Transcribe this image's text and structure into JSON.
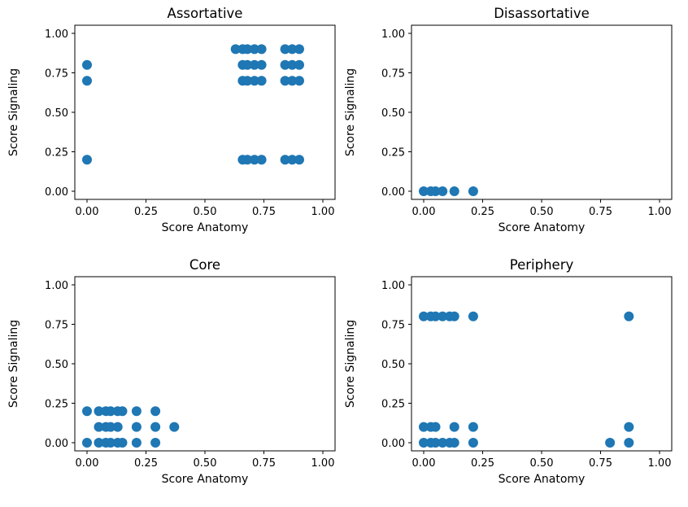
{
  "chart_data": [
    {
      "type": "scatter",
      "title": "Assortative",
      "xlabel": "Score Anatomy",
      "ylabel": "Score Signaling",
      "xlim": [
        0,
        1
      ],
      "ylim": [
        0,
        1
      ],
      "xticks": [
        "0.00",
        "0.25",
        "0.50",
        "0.75",
        "1.00"
      ],
      "yticks": [
        "0.00",
        "0.25",
        "0.50",
        "0.75",
        "1.00"
      ],
      "color": "#1f77b4",
      "points": [
        [
          0,
          0.8
        ],
        [
          0,
          0.7
        ],
        [
          0,
          0.2
        ],
        [
          0.63,
          0.9
        ],
        [
          0.66,
          0.9
        ],
        [
          0.68,
          0.9
        ],
        [
          0.71,
          0.9
        ],
        [
          0.74,
          0.9
        ],
        [
          0.84,
          0.9
        ],
        [
          0.87,
          0.9
        ],
        [
          0.9,
          0.9
        ],
        [
          0.66,
          0.8
        ],
        [
          0.68,
          0.8
        ],
        [
          0.71,
          0.8
        ],
        [
          0.74,
          0.8
        ],
        [
          0.84,
          0.8
        ],
        [
          0.87,
          0.8
        ],
        [
          0.9,
          0.8
        ],
        [
          0.66,
          0.7
        ],
        [
          0.68,
          0.7
        ],
        [
          0.71,
          0.7
        ],
        [
          0.74,
          0.7
        ],
        [
          0.84,
          0.7
        ],
        [
          0.87,
          0.7
        ],
        [
          0.9,
          0.7
        ],
        [
          0.66,
          0.2
        ],
        [
          0.68,
          0.2
        ],
        [
          0.71,
          0.2
        ],
        [
          0.74,
          0.2
        ],
        [
          0.84,
          0.2
        ],
        [
          0.87,
          0.2
        ],
        [
          0.9,
          0.2
        ]
      ]
    },
    {
      "type": "scatter",
      "title": "Disassortative",
      "xlabel": "Score Anatomy",
      "ylabel": "Score Signaling",
      "xlim": [
        0,
        1
      ],
      "ylim": [
        0,
        1
      ],
      "xticks": [
        "0.00",
        "0.25",
        "0.50",
        "0.75",
        "1.00"
      ],
      "yticks": [
        "0.00",
        "0.25",
        "0.50",
        "0.75",
        "1.00"
      ],
      "color": "#1f77b4",
      "points": [
        [
          0,
          0
        ],
        [
          0.03,
          0
        ],
        [
          0.05,
          0
        ],
        [
          0.08,
          0
        ],
        [
          0.13,
          0
        ],
        [
          0.21,
          0
        ]
      ]
    },
    {
      "type": "scatter",
      "title": "Core",
      "xlabel": "Score Anatomy",
      "ylabel": "Score Signaling",
      "xlim": [
        0,
        1
      ],
      "ylim": [
        0,
        1
      ],
      "xticks": [
        "0.00",
        "0.25",
        "0.50",
        "0.75",
        "1.00"
      ],
      "yticks": [
        "0.00",
        "0.25",
        "0.50",
        "0.75",
        "1.00"
      ],
      "color": "#1f77b4",
      "points": [
        [
          0,
          0.2
        ],
        [
          0.05,
          0.2
        ],
        [
          0.08,
          0.2
        ],
        [
          0.1,
          0.2
        ],
        [
          0.13,
          0.2
        ],
        [
          0.15,
          0.2
        ],
        [
          0.21,
          0.2
        ],
        [
          0.29,
          0.2
        ],
        [
          0.05,
          0.1
        ],
        [
          0.08,
          0.1
        ],
        [
          0.1,
          0.1
        ],
        [
          0.13,
          0.1
        ],
        [
          0.21,
          0.1
        ],
        [
          0.29,
          0.1
        ],
        [
          0.37,
          0.1
        ],
        [
          0,
          0
        ],
        [
          0.05,
          0
        ],
        [
          0.08,
          0
        ],
        [
          0.1,
          0
        ],
        [
          0.13,
          0
        ],
        [
          0.15,
          0
        ],
        [
          0.21,
          0
        ],
        [
          0.29,
          0
        ]
      ]
    },
    {
      "type": "scatter",
      "title": "Periphery",
      "xlabel": "Score Anatomy",
      "ylabel": "Score Signaling",
      "xlim": [
        0,
        1
      ],
      "ylim": [
        0,
        1
      ],
      "xticks": [
        "0.00",
        "0.25",
        "0.50",
        "0.75",
        "1.00"
      ],
      "yticks": [
        "0.00",
        "0.25",
        "0.50",
        "0.75",
        "1.00"
      ],
      "color": "#1f77b4",
      "points": [
        [
          0,
          0.8
        ],
        [
          0.03,
          0.8
        ],
        [
          0.05,
          0.8
        ],
        [
          0.08,
          0.8
        ],
        [
          0.11,
          0.8
        ],
        [
          0.13,
          0.8
        ],
        [
          0.21,
          0.8
        ],
        [
          0.87,
          0.8
        ],
        [
          0,
          0.1
        ],
        [
          0.03,
          0.1
        ],
        [
          0.05,
          0.1
        ],
        [
          0.13,
          0.1
        ],
        [
          0.21,
          0.1
        ],
        [
          0.87,
          0.1
        ],
        [
          0,
          0
        ],
        [
          0.03,
          0
        ],
        [
          0.05,
          0
        ],
        [
          0.08,
          0
        ],
        [
          0.11,
          0
        ],
        [
          0.13,
          0
        ],
        [
          0.21,
          0
        ],
        [
          0.79,
          0
        ],
        [
          0.87,
          0
        ]
      ]
    }
  ]
}
